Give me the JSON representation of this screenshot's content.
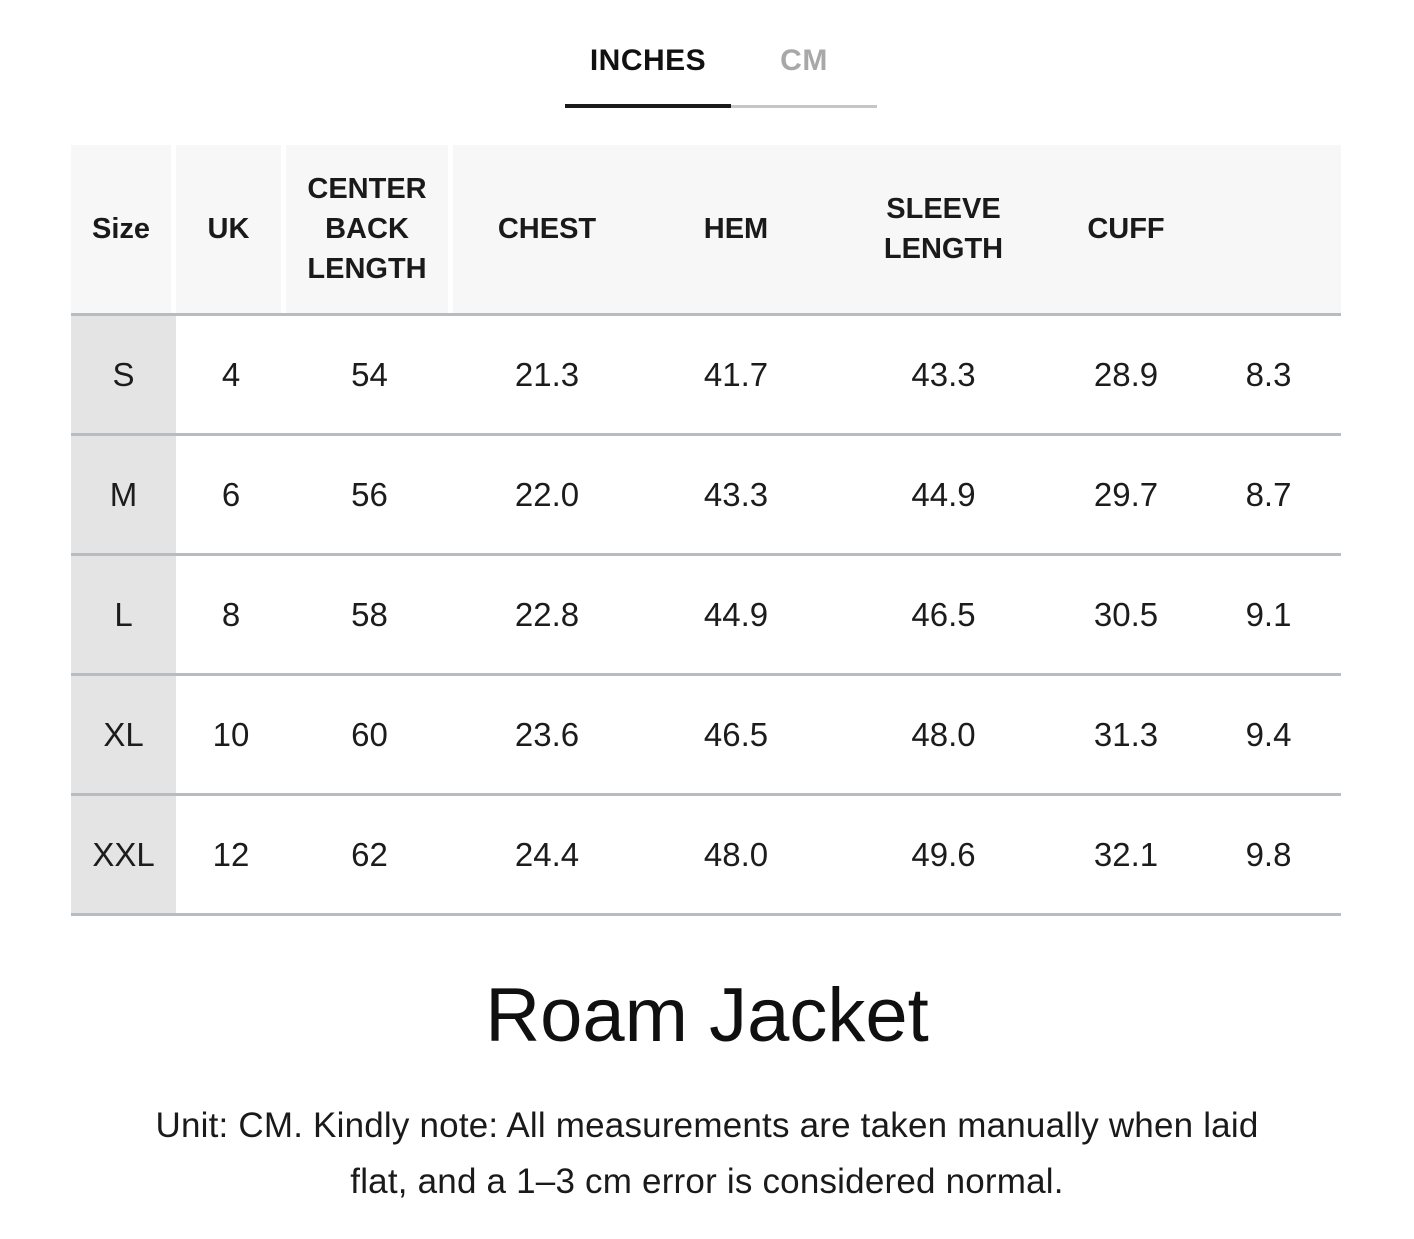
{
  "tabs": {
    "inches": "INCHES",
    "cm": "CM"
  },
  "table": {
    "headers": [
      "Size",
      "UK",
      "CENTER BACK LENGTH",
      "CHEST",
      "HEM",
      "SLEEVE LENGTH",
      "CUFF",
      ""
    ],
    "rows": [
      {
        "size": "S",
        "values": [
          "4",
          "54",
          "21.3",
          "41.7",
          "43.3",
          "28.9",
          "8.3"
        ]
      },
      {
        "size": "M",
        "values": [
          "6",
          "56",
          "22.0",
          "43.3",
          "44.9",
          "29.7",
          "8.7"
        ]
      },
      {
        "size": "L",
        "values": [
          "8",
          "58",
          "22.8",
          "44.9",
          "46.5",
          "30.5",
          "9.1"
        ]
      },
      {
        "size": "XL",
        "values": [
          "10",
          "60",
          "23.6",
          "46.5",
          "48.0",
          "31.3",
          "9.4"
        ]
      },
      {
        "size": "XXL",
        "values": [
          "12",
          "62",
          "24.4",
          "48.0",
          "49.6",
          "32.1",
          "9.8"
        ]
      }
    ]
  },
  "title": "Roam Jacket",
  "note": {
    "line1": "Unit: CM. Kindly note: All measurements are taken manually when laid",
    "line2": "flat, and a 1–3 cm error is considered normal."
  },
  "colors": {
    "header_bg": "#f7f7f8",
    "size_col_bg": "#e4e4e5",
    "separator": "#b6bcc0",
    "active_tab": "#1a1a1a",
    "inactive_tab": "#a8a8a8"
  }
}
